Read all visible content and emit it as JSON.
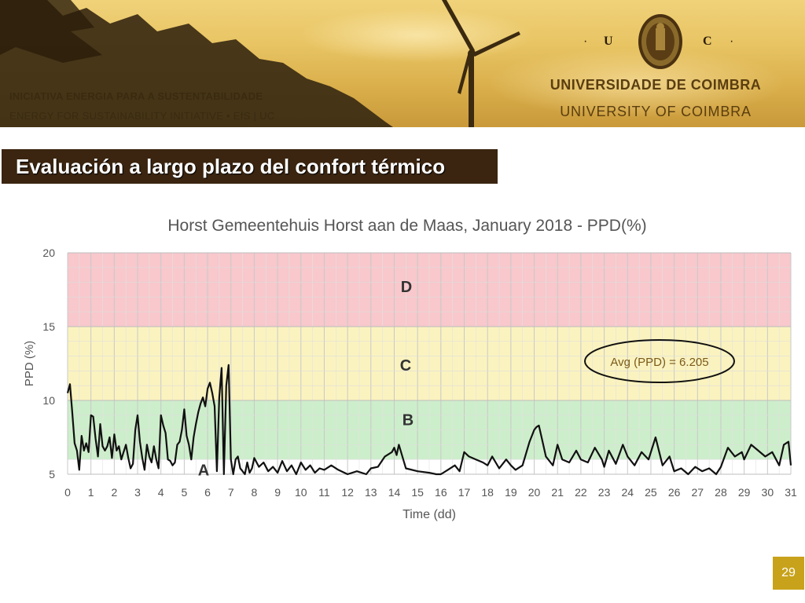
{
  "header": {
    "initiative_pt": "INICIATIVA ENERGIA  PARA  A  SUSTENTABILIDADE",
    "initiative_en": "ENERGY  FOR  SUSTAINABILITY  INITIATIVE •    EfS | UC",
    "seal_letter_left": "U",
    "seal_letter_right": "C",
    "seal_dot": "·",
    "university_pt": "UNIVERSIDADE  DE  COIMBRA",
    "university_en": "UNIVERSITY  OF  COIMBRA"
  },
  "slide": {
    "title": "Evaluación a largo plazo del confort térmico",
    "page_number": "29"
  },
  "colors": {
    "header_brown": "#3b2510",
    "zone_d": "#f8c8cc",
    "zone_c": "#fbf3bf",
    "zone_b": "#cdeecb",
    "line": "#111111",
    "page_badge": "#c8a21a"
  },
  "chart_data": {
    "type": "line",
    "title": "Horst Gemeentehuis Horst aan de Maas, January 2018 - PPD(%)",
    "xlabel": "Time (dd)",
    "ylabel": "PPD (%)",
    "xlim": [
      0,
      31
    ],
    "ylim": [
      5,
      20
    ],
    "x_ticks": [
      "0",
      "1",
      "2",
      "3",
      "4",
      "5",
      "6",
      "7",
      "8",
      "9",
      "10",
      "11",
      "12",
      "13",
      "14",
      "15",
      "16",
      "17",
      "18",
      "19",
      "20",
      "21",
      "22",
      "23",
      "24",
      "25",
      "26",
      "27",
      "28",
      "29",
      "30",
      "31"
    ],
    "y_ticks": [
      "5",
      "10",
      "15",
      "20"
    ],
    "grid": true,
    "zones": [
      {
        "label": "A",
        "y_from": 5,
        "y_to": 6
      },
      {
        "label": "B",
        "y_from": 6,
        "y_to": 10
      },
      {
        "label": "C",
        "y_from": 10,
        "y_to": 15
      },
      {
        "label": "D",
        "y_from": 15,
        "y_to": 20
      }
    ],
    "annotation": "Avg (PPD) = 6.205",
    "series": [
      {
        "x": [
          0,
          0.1,
          0.2,
          0.3,
          0.4,
          0.5,
          0.6,
          0.7,
          0.8,
          0.9,
          1.0,
          1.1,
          1.2,
          1.3,
          1.4,
          1.5,
          1.6,
          1.7,
          1.8,
          1.9,
          2.0,
          2.1,
          2.2,
          2.3,
          2.4,
          2.5,
          2.6,
          2.7,
          2.8,
          2.9,
          3.0,
          3.1,
          3.2,
          3.3,
          3.4,
          3.5,
          3.6,
          3.7,
          3.8,
          3.9,
          4.0,
          4.1,
          4.2,
          4.3,
          4.4,
          4.5,
          4.6,
          4.7,
          4.8,
          4.9,
          5.0,
          5.1,
          5.2,
          5.3,
          5.4,
          5.5,
          5.6,
          5.7,
          5.8,
          5.9,
          6.0,
          6.1,
          6.2,
          6.3,
          6.4,
          6.5,
          6.6,
          6.7,
          6.8,
          6.9,
          7.0,
          7.1,
          7.2,
          7.3,
          7.4,
          7.5,
          7.6,
          7.7,
          7.8,
          7.9,
          8.0,
          8.2,
          8.4,
          8.6,
          8.8,
          9.0,
          9.2,
          9.4,
          9.6,
          9.8,
          10.0,
          10.2,
          10.4,
          10.6,
          10.8,
          11.0,
          11.3,
          11.6,
          12.0,
          12.4,
          12.8,
          13.0,
          13.3,
          13.6,
          13.9,
          14.0,
          14.1,
          14.2,
          14.5,
          15.0,
          15.5,
          15.8,
          16.0,
          16.3,
          16.6,
          16.8,
          17.0,
          17.2,
          17.5,
          17.8,
          18.0,
          18.2,
          18.5,
          18.8,
          19.0,
          19.2,
          19.5,
          19.8,
          20.0,
          20.1,
          20.2,
          20.3,
          20.5,
          20.8,
          21.0,
          21.2,
          21.5,
          21.8,
          22.0,
          22.3,
          22.6,
          22.9,
          23.0,
          23.2,
          23.5,
          23.8,
          24.0,
          24.3,
          24.6,
          24.9,
          25.2,
          25.5,
          25.8,
          26.0,
          26.3,
          26.6,
          26.9,
          27.2,
          27.5,
          27.8,
          28.0,
          28.3,
          28.6,
          28.9,
          29.0,
          29.3,
          29.6,
          29.9,
          30.2,
          30.5,
          30.7,
          30.9,
          31.0
        ],
        "y": [
          10.5,
          11.1,
          9.2,
          7.1,
          6.6,
          5.3,
          7.6,
          6.6,
          7.1,
          6.5,
          9.0,
          8.9,
          7.4,
          6.2,
          8.4,
          6.9,
          6.6,
          6.9,
          7.5,
          6.1,
          7.7,
          6.6,
          6.9,
          6.0,
          6.5,
          7.0,
          6.1,
          5.4,
          5.7,
          8.0,
          9.0,
          7.2,
          6.1,
          5.3,
          7.0,
          6.2,
          5.8,
          6.9,
          6.0,
          5.4,
          9.0,
          8.3,
          7.8,
          6.0,
          5.9,
          5.6,
          5.8,
          7.0,
          7.2,
          8.0,
          9.4,
          7.6,
          7.0,
          6.0,
          7.5,
          8.4,
          9.2,
          9.8,
          10.2,
          9.6,
          10.8,
          11.2,
          10.5,
          9.6,
          5.2,
          10.2,
          12.2,
          5.0,
          11.0,
          12.4,
          6.0,
          5.0,
          6.0,
          6.2,
          5.4,
          5.2,
          5.0,
          5.8,
          5.1,
          5.4,
          6.1,
          5.5,
          5.8,
          5.2,
          5.5,
          5.1,
          5.9,
          5.2,
          5.6,
          5.0,
          5.8,
          5.3,
          5.6,
          5.1,
          5.4,
          5.3,
          5.6,
          5.3,
          5.0,
          5.2,
          5.0,
          5.4,
          5.5,
          6.2,
          6.5,
          6.8,
          6.3,
          7.0,
          5.4,
          5.2,
          5.1,
          5.0,
          5.0,
          5.3,
          5.6,
          5.2,
          6.5,
          6.2,
          6.0,
          5.8,
          5.6,
          6.2,
          5.4,
          6.0,
          5.6,
          5.3,
          5.6,
          7.2,
          8.0,
          8.2,
          8.3,
          7.6,
          6.2,
          5.6,
          7.0,
          6.0,
          5.8,
          6.6,
          6.0,
          5.8,
          6.8,
          6.0,
          5.5,
          6.6,
          5.7,
          7.0,
          6.2,
          5.6,
          6.5,
          6.0,
          7.5,
          5.6,
          6.2,
          5.2,
          5.4,
          5.0,
          5.5,
          5.2,
          5.4,
          5.0,
          5.5,
          6.8,
          6.2,
          6.5,
          6.0,
          7.0,
          6.6,
          6.2,
          6.5,
          5.6,
          7.0,
          7.2,
          5.6
        ]
      }
    ]
  }
}
